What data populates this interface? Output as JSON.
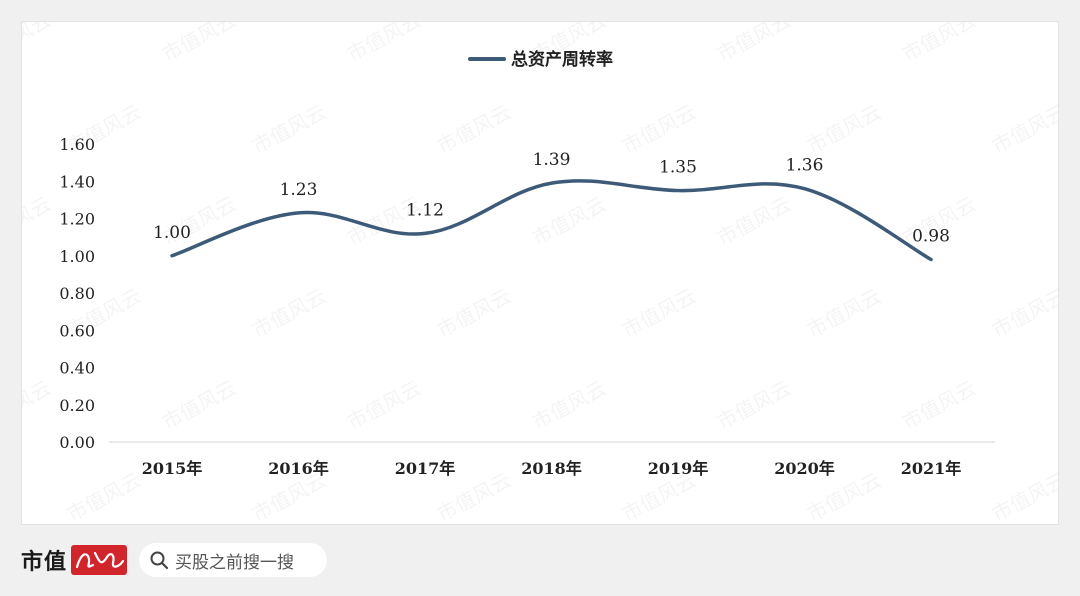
{
  "chart_data": {
    "type": "line",
    "legend": {
      "label": "总资产周转率",
      "placement": "top-center"
    },
    "categories": [
      "2015年",
      "2016年",
      "2017年",
      "2018年",
      "2019年",
      "2020年",
      "2021年"
    ],
    "series": [
      {
        "name": "总资产周转率",
        "values": [
          1.0,
          1.23,
          1.12,
          1.39,
          1.35,
          1.36,
          0.98
        ],
        "labels": [
          "1.00",
          "1.23",
          "1.12",
          "1.39",
          "1.35",
          "1.36",
          "0.98"
        ],
        "color": "#3d5a78"
      }
    ],
    "y_ticks": [
      "0.00",
      "0.20",
      "0.40",
      "0.60",
      "0.80",
      "1.00",
      "1.20",
      "1.40",
      "1.60"
    ],
    "ylim": [
      0,
      1.6
    ],
    "grid": false,
    "smooth": true
  },
  "watermark": "市值风云",
  "footer": {
    "brand": "市值",
    "brand_logo": "风云",
    "search_text": "买股之前搜一搜",
    "search_icon": "search-icon"
  }
}
